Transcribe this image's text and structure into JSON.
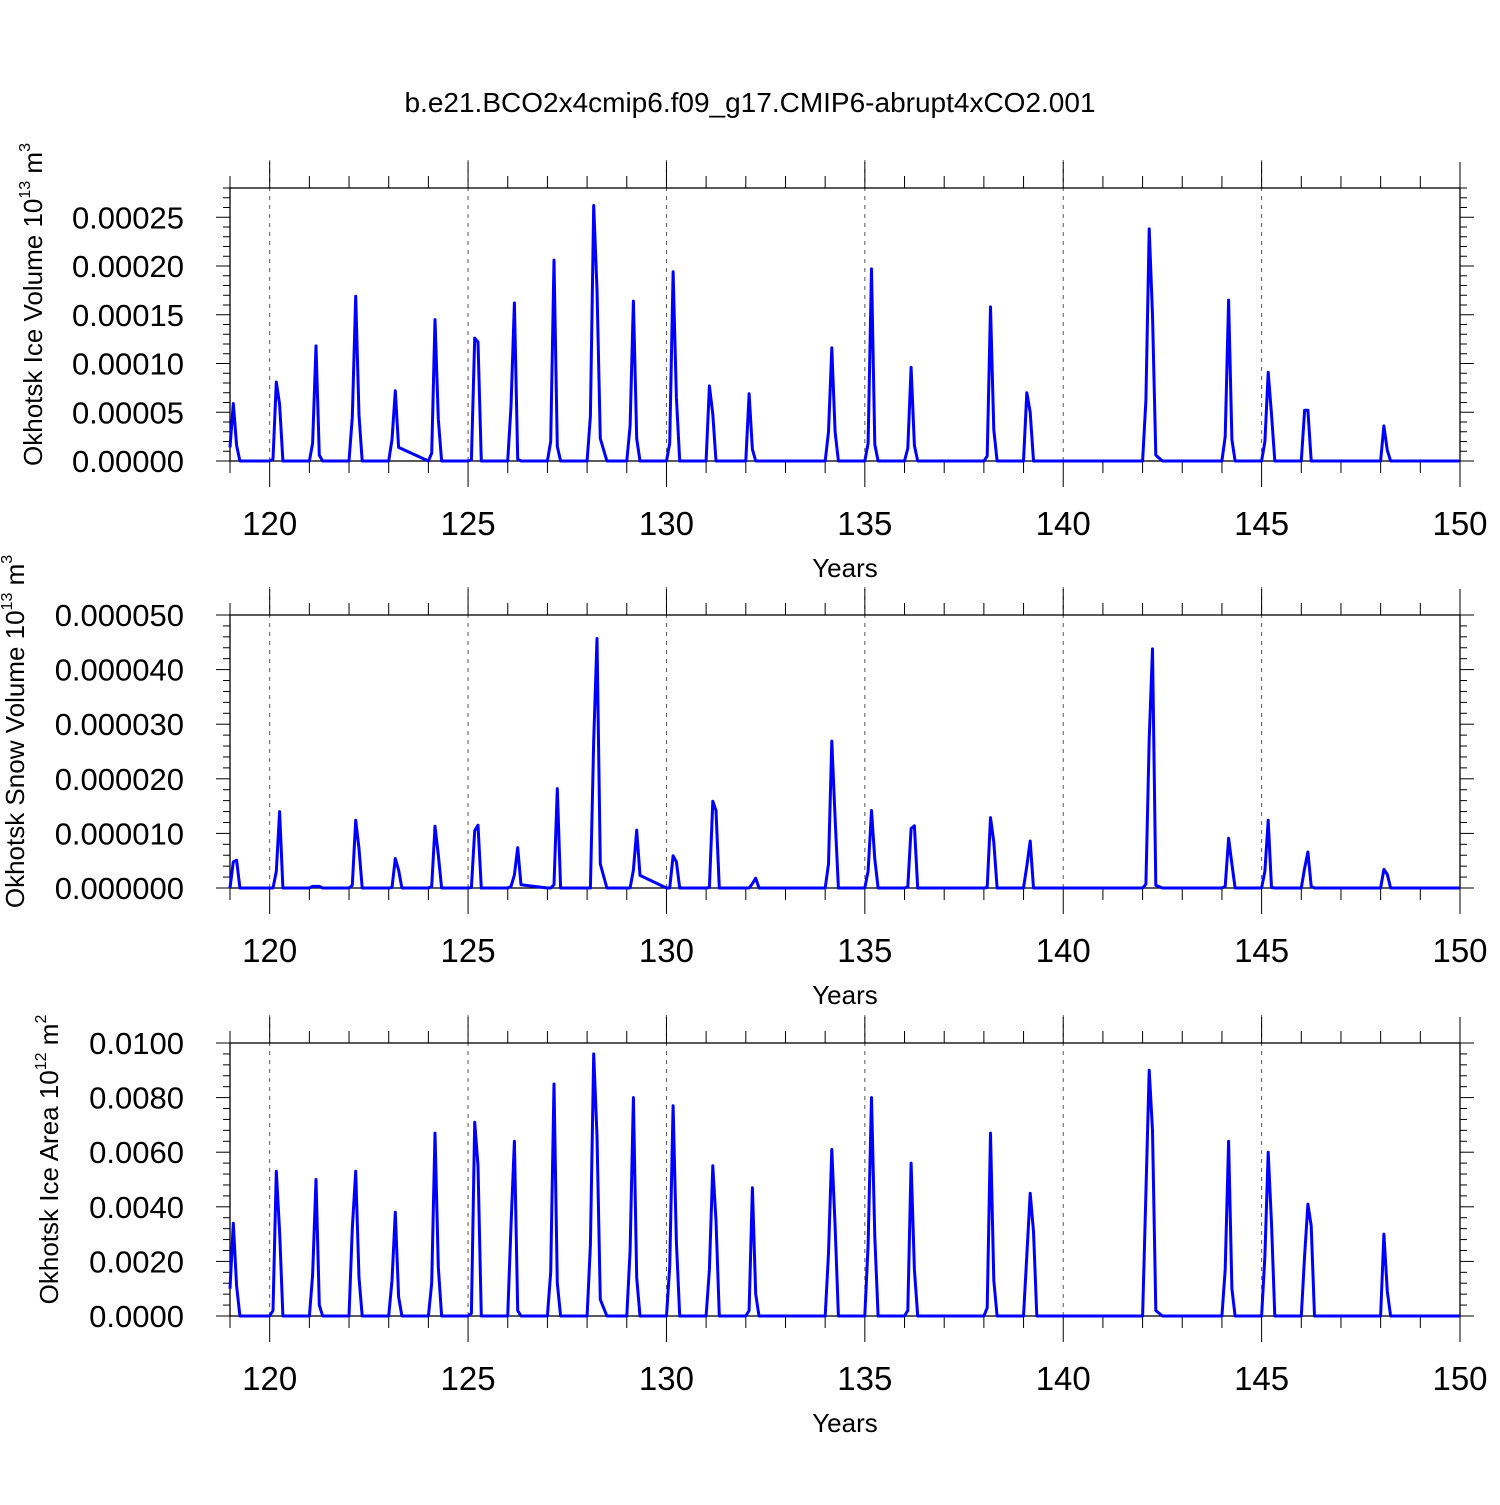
{
  "title": "b.e21.BCO2x4cmip6.f09_g17.CMIP6-abrupt4xCO2.001",
  "line_color": "#0000ff",
  "chart_data": [
    {
      "type": "line",
      "xlabel": "Years",
      "ylabel": "Okhotsk Ice Volume 10",
      "ylabel_exp": "13",
      "ylabel_unit": " m",
      "ylabel_unit_exp": "3",
      "xlim": [
        119,
        150
      ],
      "ylim": [
        0,
        0.00028
      ],
      "xticks": [
        120,
        125,
        130,
        135,
        140,
        145,
        150
      ],
      "yticks": [
        0,
        5e-05,
        0.0001,
        0.00015,
        0.0002,
        0.00025
      ],
      "ytick_labels": [
        "0.00000",
        "0.00005",
        "0.00010",
        "0.00015",
        "0.00020",
        "0.00025"
      ],
      "grid_x": [
        120,
        125,
        130,
        135,
        140,
        145
      ],
      "series": [
        {
          "x": [
            119.0,
            119.083,
            119.167,
            119.25,
            120.0,
            120.083,
            120.167,
            120.25,
            120.333,
            121.0,
            121.083,
            121.167,
            121.25,
            121.333,
            122.0,
            122.083,
            122.167,
            122.25,
            122.333,
            123.0,
            123.083,
            123.167,
            123.25,
            124.0,
            124.083,
            124.167,
            124.25,
            124.333,
            125.0,
            125.083,
            125.167,
            125.25,
            125.333,
            126.0,
            126.083,
            126.167,
            126.25,
            126.333,
            127.0,
            127.083,
            127.167,
            127.25,
            127.333,
            128.0,
            128.083,
            128.167,
            128.25,
            128.333,
            128.5,
            129.0,
            129.083,
            129.167,
            129.25,
            129.333,
            130.0,
            130.083,
            130.167,
            130.25,
            130.333,
            131.0,
            131.083,
            131.167,
            131.25,
            131.333,
            132.0,
            132.083,
            132.167,
            132.25,
            132.333,
            134.0,
            134.083,
            134.167,
            134.25,
            134.333,
            135.0,
            135.083,
            135.167,
            135.25,
            135.333,
            136.0,
            136.083,
            136.167,
            136.25,
            136.333,
            138.0,
            138.083,
            138.167,
            138.25,
            138.333,
            139.0,
            139.083,
            139.167,
            139.25,
            139.333,
            142.0,
            142.083,
            142.167,
            142.25,
            142.333,
            142.5,
            144.0,
            144.083,
            144.167,
            144.25,
            144.333,
            145.0,
            145.083,
            145.167,
            145.25,
            145.333,
            146.0,
            146.083,
            146.167,
            146.25,
            146.333,
            148.0,
            148.083,
            148.167,
            148.25,
            148.333,
            150.0
          ],
          "values": [
            1.4e-05,
            5.9e-05,
            1.6e-05,
            0,
            0,
            2e-06,
            8.1e-05,
            5.8e-05,
            0,
            0,
            1.8e-05,
            0.000118,
            6e-06,
            0,
            0,
            4.5e-05,
            0.000169,
            4.7e-05,
            0,
            0,
            2.2e-05,
            7.2e-05,
            1.4e-05,
            0,
            8e-06,
            0.000145,
            4.3e-05,
            0,
            0,
            1e-06,
            0.000126,
            0.000122,
            0,
            0,
            5.6e-05,
            0.000162,
            2e-06,
            0,
            0,
            2e-05,
            0.000206,
            1.5e-05,
            0,
            0,
            4.6e-05,
            0.000262,
            0.000176,
            2.3e-05,
            0,
            0,
            3.6e-05,
            0.000164,
            2.3e-05,
            0,
            0,
            1.8e-05,
            0.000194,
            6.5e-05,
            0,
            0,
            7.7e-05,
            4.8e-05,
            0,
            0,
            0,
            6.9e-05,
            1.2e-05,
            0,
            0,
            0,
            3e-05,
            0.000116,
            3e-05,
            0,
            0,
            1.8e-05,
            0.000197,
            1.7e-05,
            0,
            0,
            1.3e-05,
            9.6e-05,
            1.6e-05,
            0,
            0,
            5e-06,
            0.000158,
            3.2e-05,
            0,
            0,
            7e-05,
            5e-05,
            0,
            0,
            0,
            6.2e-05,
            0.000238,
            0.00015,
            6e-06,
            0,
            0,
            2.5e-05,
            0.000165,
            2.2e-05,
            0,
            0,
            2e-05,
            9.1e-05,
            4.8e-05,
            0,
            0,
            5.2e-05,
            5.2e-05,
            0,
            0,
            0,
            3.6e-05,
            1.1e-05,
            0,
            0,
            0
          ]
        }
      ]
    },
    {
      "type": "line",
      "xlabel": "Years",
      "ylabel": "Okhotsk Snow Volume 10",
      "ylabel_exp": "13",
      "ylabel_unit": " m",
      "ylabel_unit_exp": "3",
      "xlim": [
        119,
        150
      ],
      "ylim": [
        0,
        5e-05
      ],
      "xticks": [
        120,
        125,
        130,
        135,
        140,
        145,
        150
      ],
      "yticks": [
        0,
        1e-05,
        2e-05,
        3e-05,
        4e-05,
        5e-05
      ],
      "ytick_labels": [
        "0.000000",
        "0.000010",
        "0.000020",
        "0.000030",
        "0.000040",
        "0.000050"
      ],
      "grid_x": [
        120,
        125,
        130,
        135,
        140,
        145
      ],
      "series": [
        {
          "x": [
            119.0,
            119.083,
            119.167,
            119.25,
            119.333,
            120.0,
            120.083,
            120.167,
            120.25,
            120.333,
            121.0,
            121.083,
            121.167,
            121.25,
            121.333,
            122.0,
            122.083,
            122.167,
            122.25,
            122.333,
            123.0,
            123.083,
            123.167,
            123.25,
            123.333,
            124.0,
            124.083,
            124.167,
            124.25,
            124.333,
            125.0,
            125.083,
            125.167,
            125.25,
            125.333,
            126.0,
            126.083,
            126.167,
            126.25,
            126.333,
            127.0,
            127.083,
            127.167,
            127.25,
            127.333,
            128.0,
            128.083,
            128.167,
            128.25,
            128.333,
            128.5,
            129.0,
            129.083,
            129.167,
            129.25,
            129.333,
            130.0,
            130.083,
            130.167,
            130.25,
            130.333,
            131.0,
            131.083,
            131.167,
            131.25,
            131.333,
            132.0,
            132.083,
            132.167,
            132.25,
            132.333,
            134.0,
            134.083,
            134.167,
            134.25,
            134.333,
            135.0,
            135.083,
            135.167,
            135.25,
            135.333,
            136.0,
            136.083,
            136.167,
            136.25,
            136.333,
            138.0,
            138.083,
            138.167,
            138.25,
            138.333,
            139.0,
            139.083,
            139.167,
            139.25,
            139.333,
            142.0,
            142.083,
            142.167,
            142.25,
            142.333,
            142.5,
            144.0,
            144.083,
            144.167,
            144.25,
            144.333,
            145.0,
            145.083,
            145.167,
            145.25,
            145.333,
            146.0,
            146.083,
            146.167,
            146.25,
            146.333,
            148.0,
            148.083,
            148.167,
            148.25,
            148.333,
            150.0
          ],
          "values": [
            0,
            4.8e-06,
            5.1e-06,
            0,
            0,
            0,
            0,
            3e-06,
            1.4e-05,
            0,
            0,
            3e-07,
            3e-07,
            3e-07,
            0,
            0,
            5e-07,
            1.24e-05,
            7.2e-06,
            0,
            0,
            1e-07,
            5.4e-06,
            3.3e-06,
            0,
            0,
            3e-07,
            1.13e-05,
            6.1e-06,
            0,
            0,
            1e-07,
            1.05e-05,
            1.15e-05,
            0,
            0,
            3e-07,
            2.4e-06,
            7.4e-06,
            6e-07,
            0,
            0,
            6e-07,
            1.82e-05,
            0,
            0,
            0,
            2.7e-05,
            4.57e-05,
            4.4e-06,
            0,
            0,
            0,
            3.3e-06,
            1.06e-05,
            2.3e-06,
            0,
            0,
            5.9e-06,
            4.8e-06,
            0,
            0,
            1e-07,
            1.59e-05,
            1.42e-05,
            0,
            0,
            0,
            8e-07,
            1.8e-06,
            0,
            0,
            4.4e-06,
            2.69e-05,
            1.28e-05,
            0,
            0,
            3.1e-06,
            1.42e-05,
            5.3e-06,
            0,
            0,
            2e-07,
            1.09e-05,
            1.14e-05,
            0,
            0,
            1e-07,
            1.29e-05,
            8.4e-06,
            0,
            0,
            4e-06,
            8.6e-06,
            0,
            0,
            0,
            7e-07,
            2.73e-05,
            4.38e-05,
            5e-07,
            0,
            0,
            3e-07,
            9.1e-06,
            4.4e-06,
            0,
            0,
            3.1e-06,
            1.24e-05,
            1e-07,
            0,
            0,
            3.6e-06,
            6.6e-06,
            3e-07,
            0,
            0,
            3.4e-06,
            2.5e-06,
            0,
            0,
            0
          ]
        }
      ]
    },
    {
      "type": "line",
      "xlabel": "Years",
      "ylabel": "Okhotsk Ice Area 10",
      "ylabel_exp": "12",
      "ylabel_unit": " m",
      "ylabel_unit_exp": "2",
      "xlim": [
        119,
        150
      ],
      "ylim": [
        0,
        0.01
      ],
      "xticks": [
        120,
        125,
        130,
        135,
        140,
        145,
        150
      ],
      "yticks": [
        0,
        0.002,
        0.004,
        0.006,
        0.008,
        0.01
      ],
      "ytick_labels": [
        "0.0000",
        "0.0020",
        "0.0040",
        "0.0060",
        "0.0080",
        "0.0100"
      ],
      "grid_x": [
        120,
        125,
        130,
        135,
        140,
        145
      ],
      "series": [
        {
          "x": [
            119.0,
            119.083,
            119.167,
            119.25,
            120.0,
            120.083,
            120.167,
            120.25,
            120.333,
            121.0,
            121.083,
            121.167,
            121.25,
            121.333,
            122.0,
            122.083,
            122.167,
            122.25,
            122.333,
            123.0,
            123.083,
            123.167,
            123.25,
            123.333,
            124.0,
            124.083,
            124.167,
            124.25,
            124.333,
            125.0,
            125.083,
            125.167,
            125.25,
            125.333,
            126.0,
            126.083,
            126.167,
            126.25,
            126.333,
            127.0,
            127.083,
            127.167,
            127.25,
            127.333,
            128.0,
            128.083,
            128.167,
            128.25,
            128.333,
            128.5,
            129.0,
            129.083,
            129.167,
            129.25,
            129.333,
            130.0,
            130.083,
            130.167,
            130.25,
            130.333,
            131.0,
            131.083,
            131.167,
            131.25,
            131.333,
            132.0,
            132.083,
            132.167,
            132.25,
            132.333,
            134.0,
            134.083,
            134.167,
            134.25,
            134.333,
            135.0,
            135.083,
            135.167,
            135.25,
            135.333,
            136.0,
            136.083,
            136.167,
            136.25,
            136.333,
            138.0,
            138.083,
            138.167,
            138.25,
            138.333,
            139.0,
            139.083,
            139.167,
            139.25,
            139.333,
            142.0,
            142.083,
            142.167,
            142.25,
            142.333,
            142.5,
            144.0,
            144.083,
            144.167,
            144.25,
            144.333,
            145.0,
            145.083,
            145.167,
            145.25,
            145.333,
            146.0,
            146.083,
            146.167,
            146.25,
            146.333,
            148.0,
            148.083,
            148.167,
            148.25,
            148.333,
            150.0
          ],
          "values": [
            0.001,
            0.0034,
            0.0011,
            0,
            0,
            0.0002,
            0.0053,
            0.0031,
            0,
            0,
            0.0015,
            0.005,
            0.0004,
            0,
            0,
            0.0032,
            0.0053,
            0.0014,
            0,
            0,
            0.0013,
            0.0038,
            0.0007,
            0,
            0,
            0.0012,
            0.0067,
            0.0018,
            0,
            0,
            0.0001,
            0.0071,
            0.0055,
            0,
            0,
            0.0033,
            0.0064,
            0.0002,
            0,
            0,
            0.0016,
            0.0085,
            0.0012,
            0,
            0,
            0.0026,
            0.0096,
            0.0066,
            0.0006,
            0,
            0,
            0.0024,
            0.008,
            0.0014,
            0,
            0,
            0.0018,
            0.0077,
            0.0027,
            0,
            0,
            0.0017,
            0.0055,
            0.0035,
            0,
            0,
            0.0002,
            0.0047,
            0.0008,
            0,
            0,
            0.0023,
            0.0061,
            0.0033,
            0,
            0,
            0.0026,
            0.008,
            0.0029,
            0,
            0,
            0.0002,
            0.0056,
            0.0017,
            0,
            0,
            0.0003,
            0.0067,
            0.0013,
            0,
            0,
            0.0022,
            0.0045,
            0.0031,
            0,
            0,
            0.0045,
            0.009,
            0.0068,
            0.0002,
            0,
            0,
            0.0017,
            0.0064,
            0.001,
            0,
            0,
            0.0022,
            0.006,
            0.0034,
            0,
            0,
            0.0022,
            0.0041,
            0.0033,
            0,
            0,
            0.003,
            0.0009,
            0,
            0,
            0
          ]
        }
      ]
    }
  ]
}
